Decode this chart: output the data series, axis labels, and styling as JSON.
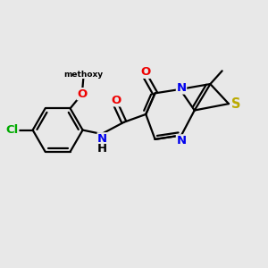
{
  "bg_color": "#e8e8e8",
  "atom_colors": {
    "C": "#000000",
    "N": "#0000ee",
    "O": "#ee0000",
    "S": "#bbaa00",
    "Cl": "#00aa00",
    "H": "#000000"
  },
  "lw": 1.6,
  "fontsize": 9.5
}
